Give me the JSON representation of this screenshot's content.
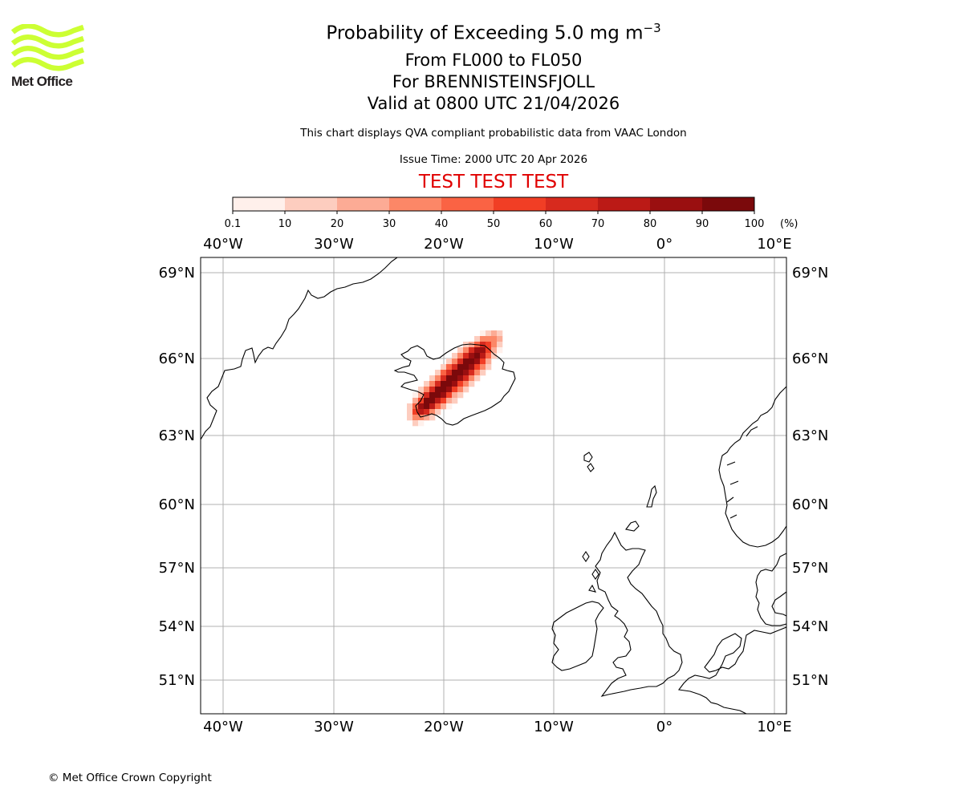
{
  "logo": {
    "text": "Met Office",
    "icon": "met-office-wave-logo",
    "color": "#ccff33"
  },
  "title": {
    "line1": "Probability of Exceeding 5.0 mg m",
    "line1_sup": "−3",
    "line2": "From FL000 to FL050",
    "line3": "For BRENNISTEINSFJOLL",
    "line4": "Valid at 0800 UTC 21/04/2026"
  },
  "subtitle": "This chart displays QVA compliant probabilistic data from VAAC London",
  "issue_time": "Issue Time: 2000 UTC 20 Apr 2026",
  "test_banner": "TEST TEST TEST",
  "colorbar": {
    "ticks": [
      "0.1",
      "10",
      "20",
      "30",
      "40",
      "50",
      "60",
      "70",
      "80",
      "90",
      "100"
    ],
    "unit": "(%)",
    "colors": [
      "#fff0eb",
      "#fdcdbf",
      "#fcab95",
      "#fc8767",
      "#fa6344",
      "#f13e25",
      "#d72a1e",
      "#bb1a16",
      "#9a0f10",
      "#7b090b",
      "#5e0a07"
    ]
  },
  "map": {
    "lon_ticks": [
      "40°W",
      "30°W",
      "20°W",
      "10°W",
      "0°",
      "10°E"
    ],
    "lat_ticks": [
      "69°N",
      "66°N",
      "63°N",
      "60°N",
      "57°N",
      "54°N",
      "51°N"
    ],
    "gridlines": true
  },
  "copyright": "© Met Office Crown Copyright"
}
